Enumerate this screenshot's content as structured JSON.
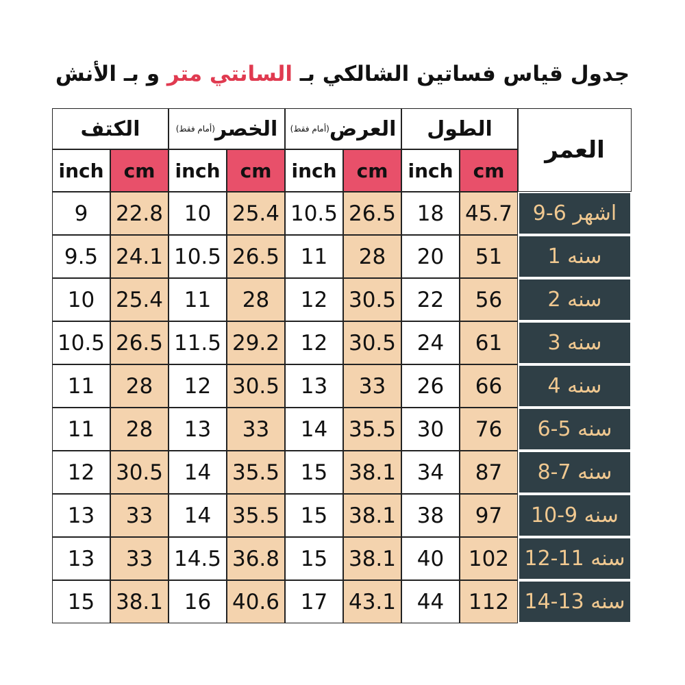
{
  "title": {
    "before": "جدول قياس فساتين الشالكي بـ",
    "highlight": "السانتي متر",
    "after": "و بـ الأنش"
  },
  "table": {
    "age_header": "العمر",
    "units": {
      "cm": "cm",
      "inch": "inch"
    },
    "groups": [
      {
        "label": "الطول"
      },
      {
        "label": "العرض",
        "note": "(أمام فقط)"
      },
      {
        "label": "الخصر",
        "note": "(أمام فقط)"
      },
      {
        "label": "الكتف"
      }
    ],
    "rows": [
      {
        "age": "9-6 اشهر",
        "values": [
          [
            "45.7",
            "18"
          ],
          [
            "26.5",
            "10.5"
          ],
          [
            "25.4",
            "10"
          ],
          [
            "22.8",
            "9"
          ]
        ]
      },
      {
        "age": "1 سنه",
        "values": [
          [
            "51",
            "20"
          ],
          [
            "28",
            "11"
          ],
          [
            "26.5",
            "10.5"
          ],
          [
            "24.1",
            "9.5"
          ]
        ]
      },
      {
        "age": "2 سنه",
        "values": [
          [
            "56",
            "22"
          ],
          [
            "30.5",
            "12"
          ],
          [
            "28",
            "11"
          ],
          [
            "25.4",
            "10"
          ]
        ]
      },
      {
        "age": "3 سنه",
        "values": [
          [
            "61",
            "24"
          ],
          [
            "30.5",
            "12"
          ],
          [
            "29.2",
            "11.5"
          ],
          [
            "26.5",
            "10.5"
          ]
        ]
      },
      {
        "age": "4 سنه",
        "values": [
          [
            "66",
            "26"
          ],
          [
            "33",
            "13"
          ],
          [
            "30.5",
            "12"
          ],
          [
            "28",
            "11"
          ]
        ]
      },
      {
        "age": "6-5 سنه",
        "values": [
          [
            "76",
            "30"
          ],
          [
            "35.5",
            "14"
          ],
          [
            "33",
            "13"
          ],
          [
            "28",
            "11"
          ]
        ]
      },
      {
        "age": "8-7 سنه",
        "values": [
          [
            "87",
            "34"
          ],
          [
            "38.1",
            "15"
          ],
          [
            "35.5",
            "14"
          ],
          [
            "30.5",
            "12"
          ]
        ]
      },
      {
        "age": "10-9 سنه",
        "values": [
          [
            "97",
            "38"
          ],
          [
            "38.1",
            "15"
          ],
          [
            "35.5",
            "14"
          ],
          [
            "33",
            "13"
          ]
        ]
      },
      {
        "age": "12-11 سنه",
        "values": [
          [
            "102",
            "40"
          ],
          [
            "38.1",
            "15"
          ],
          [
            "36.8",
            "14.5"
          ],
          [
            "33",
            "13"
          ]
        ]
      },
      {
        "age": "14-13 سنه",
        "values": [
          [
            "112",
            "44"
          ],
          [
            "43.1",
            "17"
          ],
          [
            "40.6",
            "16"
          ],
          [
            "38.1",
            "15"
          ]
        ]
      }
    ]
  }
}
